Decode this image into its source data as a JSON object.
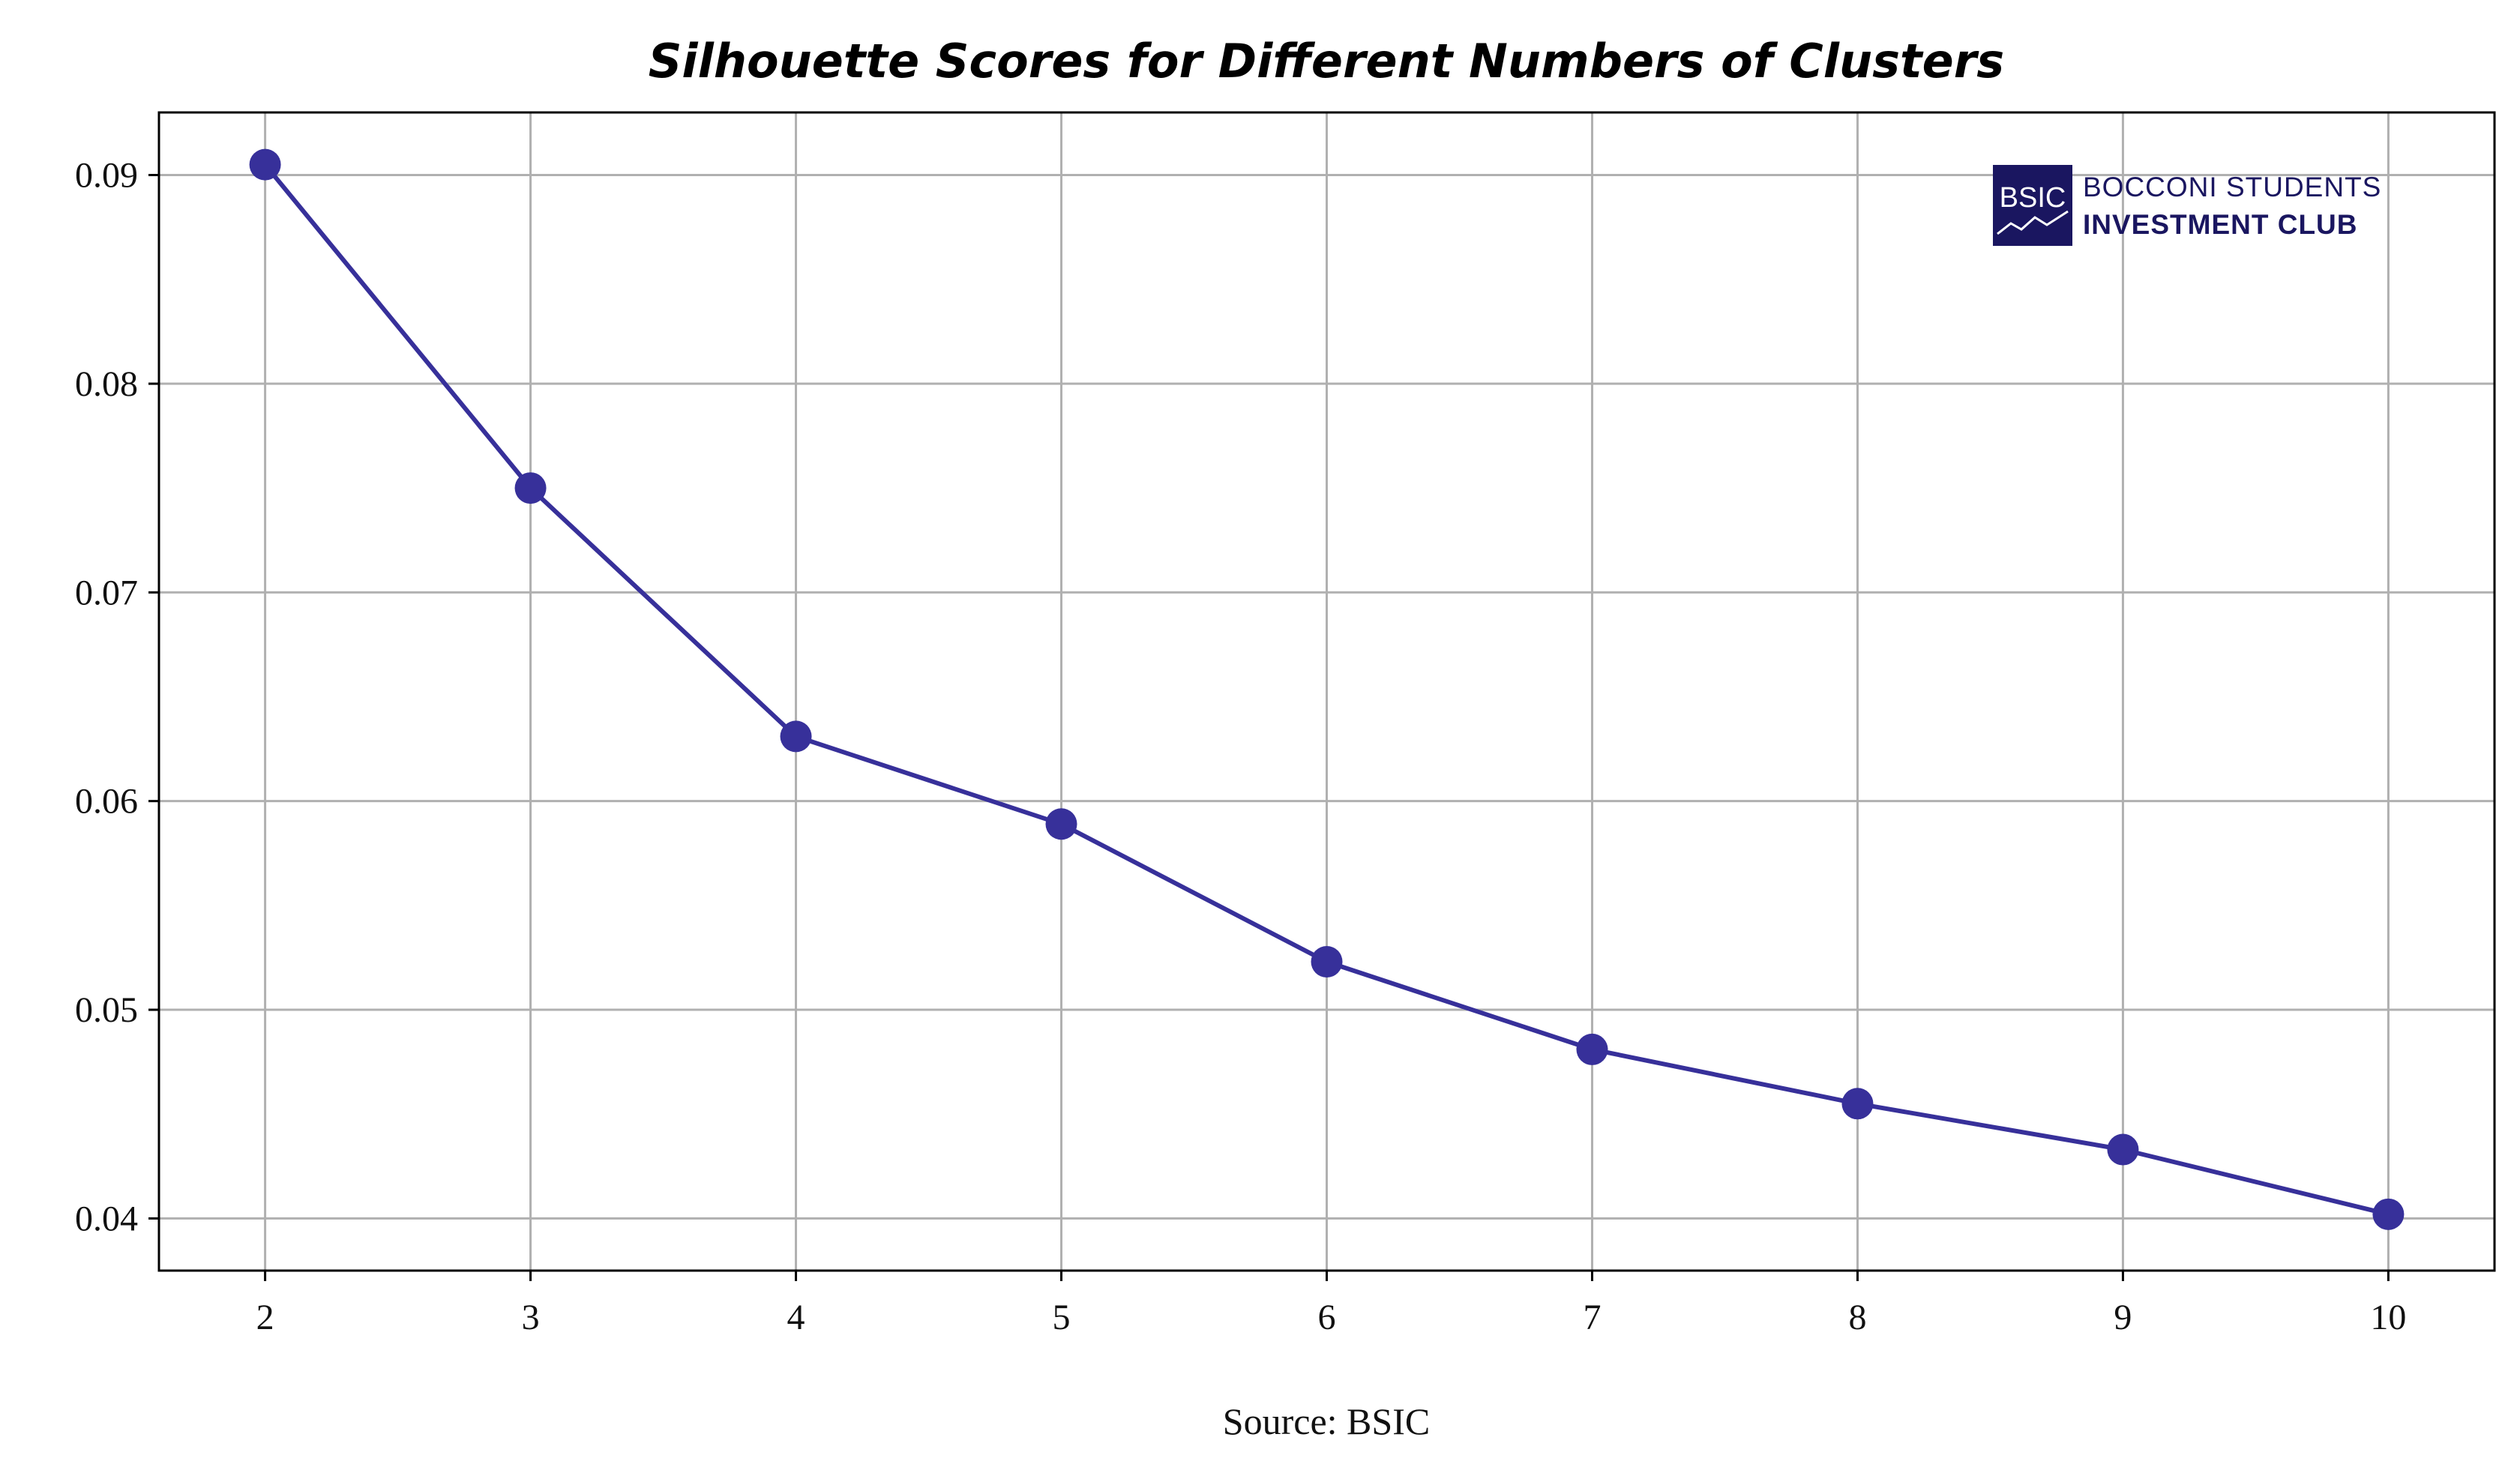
{
  "chart_data": {
    "type": "line",
    "title": "Silhouette Scores for Different Numbers of Clusters",
    "xlabel": "",
    "ylabel": "",
    "x": [
      2,
      3,
      4,
      5,
      6,
      7,
      8,
      9,
      10
    ],
    "series": [
      {
        "values": [
          0.0905,
          0.075,
          0.0631,
          0.0589,
          0.0523,
          0.0481,
          0.0455,
          0.0433,
          0.0402
        ],
        "color": "#37309a",
        "marker": "circle"
      }
    ],
    "xticks": [
      "2",
      "3",
      "4",
      "5",
      "6",
      "7",
      "8",
      "9",
      "10"
    ],
    "yticks": [
      "0.04",
      "0.05",
      "0.06",
      "0.07",
      "0.08",
      "0.09"
    ],
    "xlim": [
      1.6,
      10.4
    ],
    "ylim": [
      0.0375,
      0.093
    ],
    "grid": true,
    "legend": "none"
  },
  "source": "Source: BSIC",
  "logo": {
    "mark": "BSIC",
    "line1": "BOCCONI STUDENTS",
    "line2": "INVESTMENT CLUB",
    "color": "#1a1660"
  }
}
